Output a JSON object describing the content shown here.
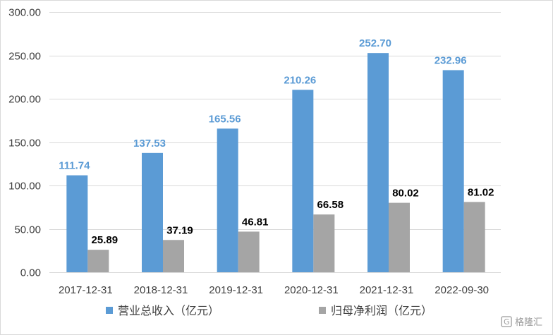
{
  "chart_data": {
    "type": "bar",
    "title": "",
    "xlabel": "",
    "ylabel": "",
    "categories": [
      "2017-12-31",
      "2018-12-31",
      "2019-12-31",
      "2020-12-31",
      "2021-12-31",
      "2022-09-30"
    ],
    "series": [
      {
        "name": "营业总收入（亿元）",
        "values": [
          111.74,
          137.53,
          165.56,
          210.26,
          252.7,
          232.96
        ],
        "labels": [
          "111.74",
          "137.53",
          "165.56",
          "210.26",
          "252.70",
          "232.96"
        ],
        "color": "#5b9bd5",
        "label_color": "#5b9bd5"
      },
      {
        "name": "归母净利润（亿元）",
        "values": [
          25.89,
          37.19,
          46.81,
          66.58,
          80.02,
          81.02
        ],
        "labels": [
          "25.89",
          "37.19",
          "46.81",
          "66.58",
          "80.02",
          "81.02"
        ],
        "color": "#a5a5a5",
        "label_color": "#000000"
      }
    ],
    "ylim": [
      0,
      300
    ],
    "yticks": [
      "0.00",
      "50.00",
      "100.00",
      "150.00",
      "200.00",
      "250.00",
      "300.00"
    ],
    "ytick_values": [
      0,
      50,
      100,
      150,
      200,
      250,
      300
    ],
    "grid": true,
    "legend_position": "bottom"
  },
  "watermark": {
    "text": "格隆汇"
  }
}
